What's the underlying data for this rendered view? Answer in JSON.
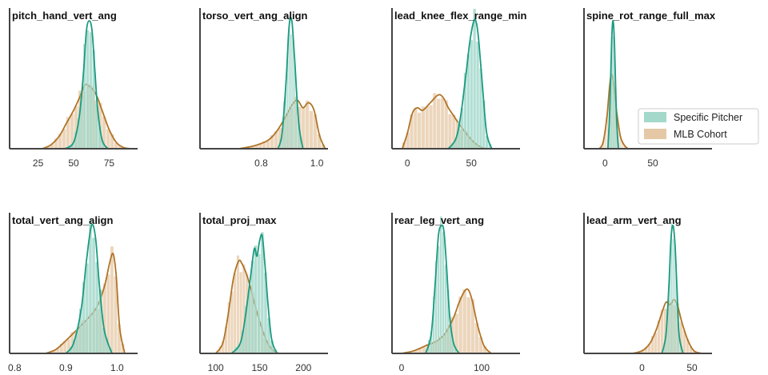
{
  "legend": {
    "placement": "right-center",
    "entries": [
      {
        "label": "Specific Pitcher",
        "color": "#1b9b80"
      },
      {
        "label": "MLB Cohort",
        "color": "#b07428"
      }
    ]
  },
  "colors": {
    "pitcher": "#1b9b80",
    "pitcher_fill": "#a3d8cb",
    "cohort": "#b07428",
    "cohort_fill": "#e5c8a5",
    "axis": "#444444"
  },
  "chart_data": [
    {
      "type": "area",
      "title": "pitch_hand_vert_ang",
      "xlim": [
        5,
        95
      ],
      "xticks": [
        25,
        50,
        75
      ],
      "tick_labels": [
        "25",
        "50",
        "75"
      ],
      "series": [
        {
          "name": "Specific Pitcher",
          "x": [
            44,
            50,
            54,
            57,
            59,
            61,
            63,
            65,
            67,
            70,
            74
          ],
          "density": [
            0,
            0.05,
            0.25,
            0.6,
            0.92,
            1.0,
            0.92,
            0.6,
            0.3,
            0.07,
            0
          ]
        },
        {
          "name": "MLB Cohort",
          "x": [
            28,
            34,
            40,
            45,
            50,
            55,
            58,
            62,
            66,
            70,
            75,
            80,
            85,
            90
          ],
          "density": [
            0,
            0.03,
            0.1,
            0.2,
            0.3,
            0.42,
            0.5,
            0.48,
            0.42,
            0.3,
            0.15,
            0.05,
            0.01,
            0
          ]
        }
      ]
    },
    {
      "type": "area",
      "title": "torso_vert_ang_align",
      "xlim": [
        0.58,
        1.04
      ],
      "xticks": [
        0.8,
        1.0
      ],
      "tick_labels": [
        "0.8",
        "1.0"
      ],
      "series": [
        {
          "name": "Specific Pitcher",
          "x": [
            0.86,
            0.875,
            0.89,
            0.9,
            0.91,
            0.92,
            0.935,
            0.95
          ],
          "density": [
            0,
            0.12,
            0.55,
            0.95,
            1.0,
            0.7,
            0.2,
            0
          ]
        },
        {
          "name": "MLB Cohort",
          "x": [
            0.72,
            0.77,
            0.82,
            0.85,
            0.88,
            0.91,
            0.93,
            0.95,
            0.97,
            0.99,
            1.01,
            1.03
          ],
          "density": [
            0,
            0.02,
            0.06,
            0.12,
            0.22,
            0.34,
            0.38,
            0.32,
            0.36,
            0.3,
            0.1,
            0
          ]
        }
      ]
    },
    {
      "type": "area",
      "title": "lead_knee_flex_range_min",
      "xlim": [
        -12,
        88
      ],
      "xticks": [
        0,
        50
      ],
      "tick_labels": [
        "0",
        "50"
      ],
      "series": [
        {
          "name": "Specific Pitcher",
          "x": [
            32,
            38,
            42,
            46,
            49,
            52,
            54,
            56,
            59,
            62,
            66
          ],
          "density": [
            0,
            0.08,
            0.28,
            0.6,
            0.85,
            1.0,
            0.98,
            0.82,
            0.45,
            0.12,
            0
          ]
        },
        {
          "name": "MLB Cohort",
          "x": [
            -4,
            0,
            4,
            8,
            12,
            18,
            24,
            28,
            32,
            36,
            40,
            46,
            52,
            58,
            62
          ],
          "density": [
            0,
            0.12,
            0.28,
            0.32,
            0.3,
            0.36,
            0.42,
            0.4,
            0.32,
            0.26,
            0.2,
            0.12,
            0.05,
            0.01,
            0
          ]
        }
      ]
    },
    {
      "type": "area",
      "title": "spine_rot_range_full_max",
      "xlim": [
        -22,
        112
      ],
      "xticks": [
        0,
        50
      ],
      "tick_labels": [
        "0",
        "50"
      ],
      "series": [
        {
          "name": "Specific Pitcher",
          "x": [
            3,
            5,
            7,
            8.5,
            10,
            12,
            14
          ],
          "density": [
            0,
            0.3,
            0.85,
            1.0,
            0.8,
            0.25,
            0
          ]
        },
        {
          "name": "MLB Cohort",
          "x": [
            -6,
            -2,
            2,
            5,
            7,
            9,
            12,
            16,
            20,
            24
          ],
          "density": [
            0,
            0.05,
            0.25,
            0.5,
            0.58,
            0.5,
            0.3,
            0.1,
            0.03,
            0
          ]
        }
      ]
    },
    {
      "type": "area",
      "title": "total_vert_ang_align",
      "xlim": [
        0.79,
        1.04
      ],
      "xticks": [
        0.8,
        0.9,
        1.0
      ],
      "tick_labels": [
        "0.8",
        "0.9",
        "1.0"
      ],
      "series": [
        {
          "name": "Specific Pitcher",
          "x": [
            0.9,
            0.915,
            0.93,
            0.94,
            0.95,
            0.958,
            0.965,
            0.975,
            0.99
          ],
          "density": [
            0,
            0.08,
            0.35,
            0.72,
            1.0,
            0.9,
            0.55,
            0.18,
            0
          ]
        },
        {
          "name": "MLB Cohort",
          "x": [
            0.86,
            0.88,
            0.9,
            0.92,
            0.94,
            0.96,
            0.975,
            0.985,
            0.992,
            0.998,
            1.005,
            1.015
          ],
          "density": [
            0,
            0.03,
            0.1,
            0.18,
            0.26,
            0.36,
            0.52,
            0.7,
            0.78,
            0.62,
            0.2,
            0
          ]
        }
      ]
    },
    {
      "type": "area",
      "title": "total_proj_max",
      "xlim": [
        82,
        228
      ],
      "xticks": [
        100,
        150,
        200
      ],
      "tick_labels": [
        "100",
        "150",
        "200"
      ],
      "series": [
        {
          "name": "Specific Pitcher",
          "x": [
            118,
            128,
            134,
            140,
            144,
            147,
            150,
            153,
            156,
            160,
            164,
            170
          ],
          "density": [
            0,
            0.08,
            0.3,
            0.62,
            0.82,
            0.76,
            0.88,
            0.92,
            0.7,
            0.35,
            0.1,
            0
          ]
        },
        {
          "name": "MLB Cohort",
          "x": [
            100,
            108,
            114,
            120,
            126,
            130,
            136,
            142,
            148,
            154,
            160,
            168,
            175
          ],
          "density": [
            0,
            0.08,
            0.3,
            0.58,
            0.72,
            0.7,
            0.6,
            0.45,
            0.3,
            0.17,
            0.07,
            0.01,
            0
          ]
        }
      ]
    },
    {
      "type": "area",
      "title": "rear_leg_vert_ang",
      "xlim": [
        -12,
        148
      ],
      "xticks": [
        0,
        100
      ],
      "tick_labels": [
        "0",
        "100"
      ],
      "series": [
        {
          "name": "Specific Pitcher",
          "x": [
            30,
            37,
            42,
            46,
            50,
            53,
            56,
            60,
            65,
            72
          ],
          "density": [
            0,
            0.15,
            0.55,
            0.92,
            1.0,
            0.95,
            0.7,
            0.3,
            0.08,
            0
          ]
        },
        {
          "name": "MLB Cohort",
          "x": [
            0,
            15,
            30,
            45,
            55,
            65,
            72,
            78,
            83,
            88,
            95,
            103,
            112
          ],
          "density": [
            0,
            0.02,
            0.06,
            0.1,
            0.16,
            0.28,
            0.4,
            0.48,
            0.5,
            0.42,
            0.22,
            0.06,
            0
          ]
        }
      ]
    },
    {
      "type": "area",
      "title": "lead_arm_vert_ang",
      "xlim": [
        -58,
        70
      ],
      "xticks": [
        0,
        50
      ],
      "tick_labels": [
        "0",
        "50"
      ],
      "series": [
        {
          "name": "Specific Pitcher",
          "x": [
            20,
            24,
            27,
            29,
            31,
            33,
            35,
            37,
            41
          ],
          "density": [
            0,
            0.15,
            0.55,
            0.9,
            1.0,
            0.85,
            0.5,
            0.15,
            0
          ]
        },
        {
          "name": "MLB Cohort",
          "x": [
            -10,
            0,
            8,
            14,
            20,
            24,
            28,
            32,
            36,
            40,
            46,
            52,
            60
          ],
          "density": [
            0,
            0.02,
            0.08,
            0.18,
            0.32,
            0.4,
            0.38,
            0.42,
            0.36,
            0.24,
            0.1,
            0.02,
            0
          ]
        }
      ]
    }
  ]
}
